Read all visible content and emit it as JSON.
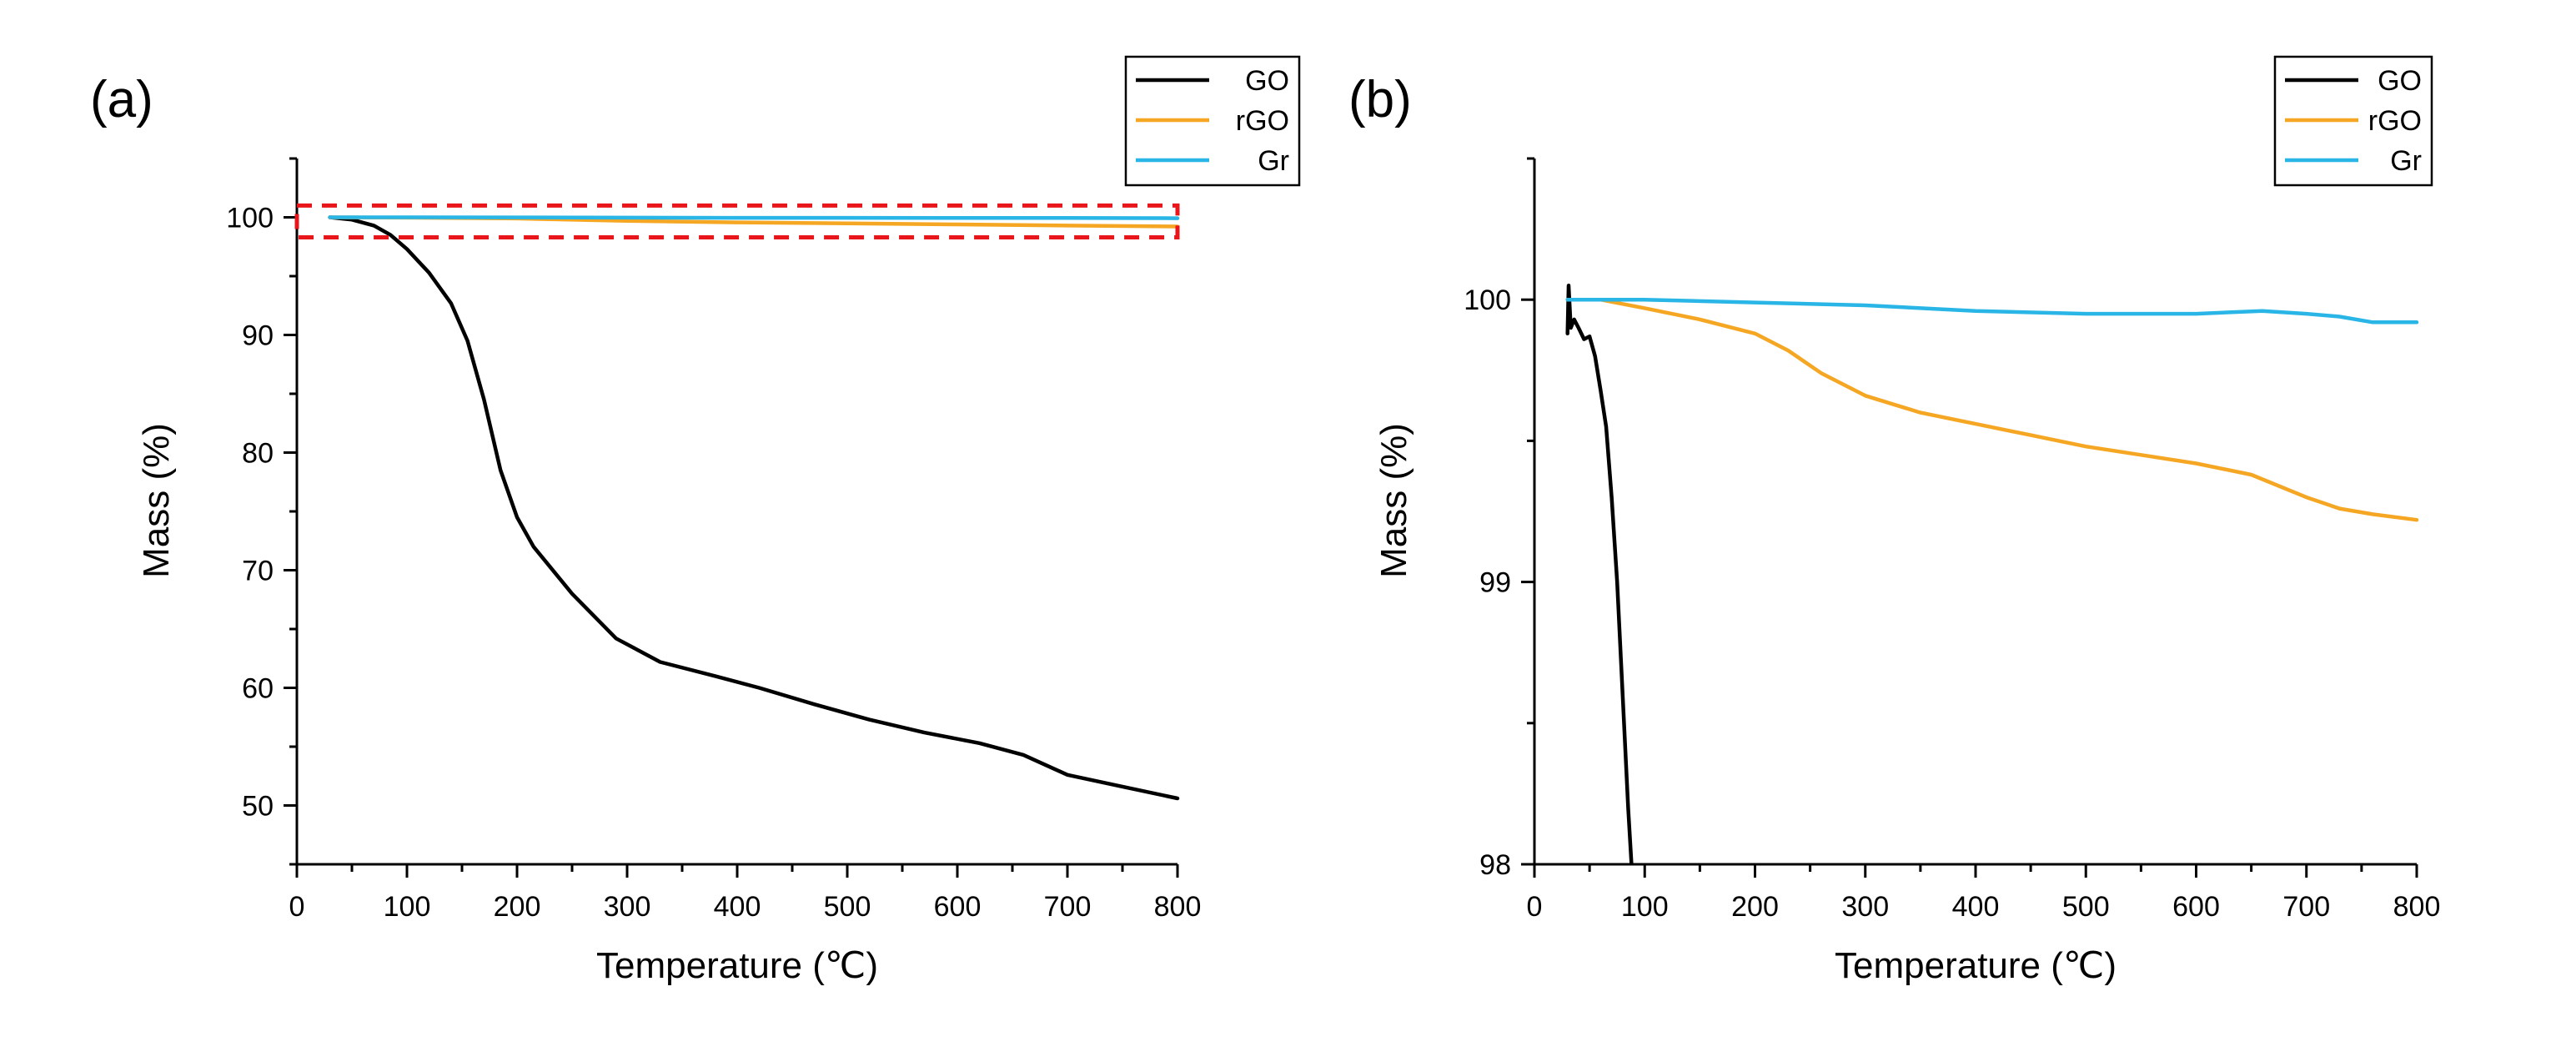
{
  "chart_data": [
    {
      "panel_label": "(a)",
      "type": "line",
      "xlabel": "Temperature (℃)",
      "ylabel": "Mass (%)",
      "xlim": [
        0,
        800
      ],
      "ylim": [
        45,
        105
      ],
      "xticks": [
        0,
        100,
        200,
        300,
        400,
        500,
        600,
        700,
        800
      ],
      "yticks": [
        50,
        60,
        70,
        80,
        90,
        100
      ],
      "highlight_region": {
        "x": [
          0,
          800
        ],
        "y": [
          98.3,
          101
        ]
      },
      "legend": [
        "GO",
        "rGO",
        "Gr"
      ],
      "series": [
        {
          "name": "GO",
          "color": "#000000",
          "x": [
            30,
            50,
            70,
            85,
            100,
            120,
            140,
            155,
            170,
            185,
            200,
            215,
            250,
            290,
            330,
            380,
            420,
            470,
            520,
            570,
            620,
            660,
            700,
            750,
            800
          ],
          "y": [
            100,
            99.8,
            99.3,
            98.5,
            97.3,
            95.3,
            92.7,
            89.5,
            84.5,
            78.5,
            74.5,
            72,
            68,
            64.2,
            62.2,
            61,
            60,
            58.6,
            57.3,
            56.2,
            55.3,
            54.3,
            52.6,
            51.6,
            50.6
          ]
        },
        {
          "name": "rGO",
          "color": "#f5a623",
          "x": [
            30,
            100,
            200,
            300,
            400,
            500,
            600,
            700,
            800
          ],
          "y": [
            100,
            99.97,
            99.9,
            99.7,
            99.57,
            99.48,
            99.4,
            99.3,
            99.22
          ]
        },
        {
          "name": "Gr",
          "color": "#29b6e6",
          "x": [
            30,
            200,
            400,
            600,
            700,
            800
          ],
          "y": [
            100,
            99.99,
            99.96,
            99.95,
            99.95,
            99.92
          ]
        }
      ]
    },
    {
      "panel_label": "(b)",
      "type": "line",
      "xlabel": "Temperature (℃)",
      "ylabel": "Mass (%)",
      "xlim": [
        0,
        800
      ],
      "ylim": [
        98,
        100.5
      ],
      "xticks": [
        0,
        100,
        200,
        300,
        400,
        500,
        600,
        700,
        800
      ],
      "yticks": [
        98,
        99,
        100
      ],
      "legend": [
        "GO",
        "rGO",
        "Gr"
      ],
      "series": [
        {
          "name": "GO",
          "color": "#000000",
          "x": [
            30,
            31,
            33,
            36,
            40,
            45,
            50,
            55,
            60,
            65,
            70,
            75,
            80,
            85,
            88
          ],
          "y": [
            99.88,
            100.05,
            99.9,
            99.93,
            99.9,
            99.86,
            99.87,
            99.8,
            99.68,
            99.55,
            99.3,
            99.0,
            98.6,
            98.2,
            98.0
          ]
        },
        {
          "name": "rGO",
          "color": "#f5a623",
          "x": [
            30,
            60,
            100,
            150,
            200,
            230,
            260,
            300,
            350,
            400,
            450,
            500,
            550,
            600,
            650,
            700,
            730,
            760,
            800
          ],
          "y": [
            100,
            100,
            99.97,
            99.93,
            99.88,
            99.82,
            99.74,
            99.66,
            99.6,
            99.56,
            99.52,
            99.48,
            99.45,
            99.42,
            99.38,
            99.3,
            99.26,
            99.24,
            99.22
          ]
        },
        {
          "name": "Gr",
          "color": "#29b6e6",
          "x": [
            30,
            100,
            200,
            300,
            400,
            500,
            600,
            660,
            700,
            730,
            760,
            800
          ],
          "y": [
            100,
            100,
            99.99,
            99.98,
            99.96,
            99.95,
            99.95,
            99.96,
            99.95,
            99.94,
            99.92,
            99.92
          ]
        }
      ]
    }
  ]
}
